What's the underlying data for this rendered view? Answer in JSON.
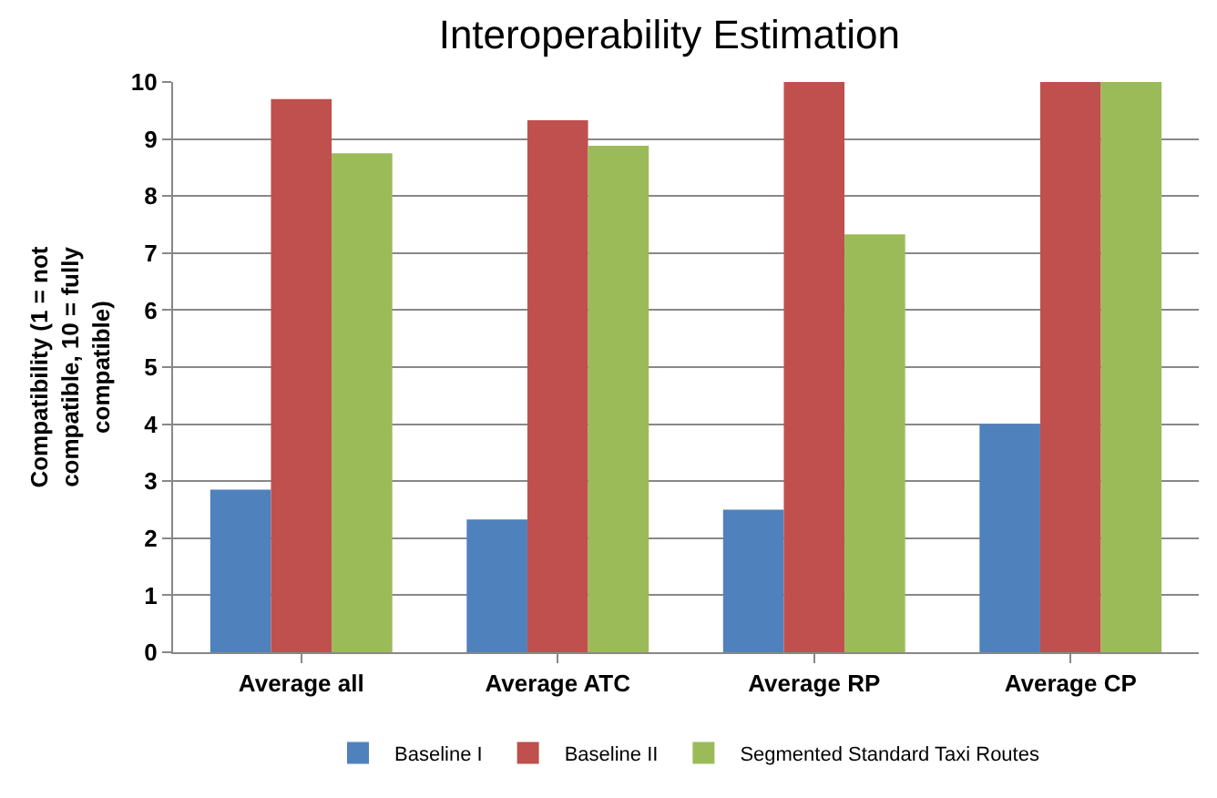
{
  "chart_data": {
    "type": "bar",
    "title": "Interoperability Estimation",
    "ylabel": "Compatibility (1 = not compatible, 10 = fully compatible)",
    "categories": [
      "Average all",
      "Average ATC",
      "Average RP",
      "Average CP"
    ],
    "series": [
      {
        "name": "Baseline I",
        "color": "#4f81bd",
        "values": [
          2.85,
          2.33,
          2.5,
          4.0
        ]
      },
      {
        "name": "Baseline II",
        "color": "#c0504d",
        "values": [
          9.7,
          9.33,
          10,
          10
        ]
      },
      {
        "name": "Segmented Standard Taxi Routes",
        "color": "#9bbb59",
        "values": [
          8.75,
          8.88,
          7.33,
          10
        ]
      }
    ],
    "ylim": [
      0,
      10
    ],
    "yticks": [
      0,
      1,
      2,
      3,
      4,
      5,
      6,
      7,
      8,
      9,
      10
    ],
    "grid": "y",
    "legend": "bottom"
  }
}
